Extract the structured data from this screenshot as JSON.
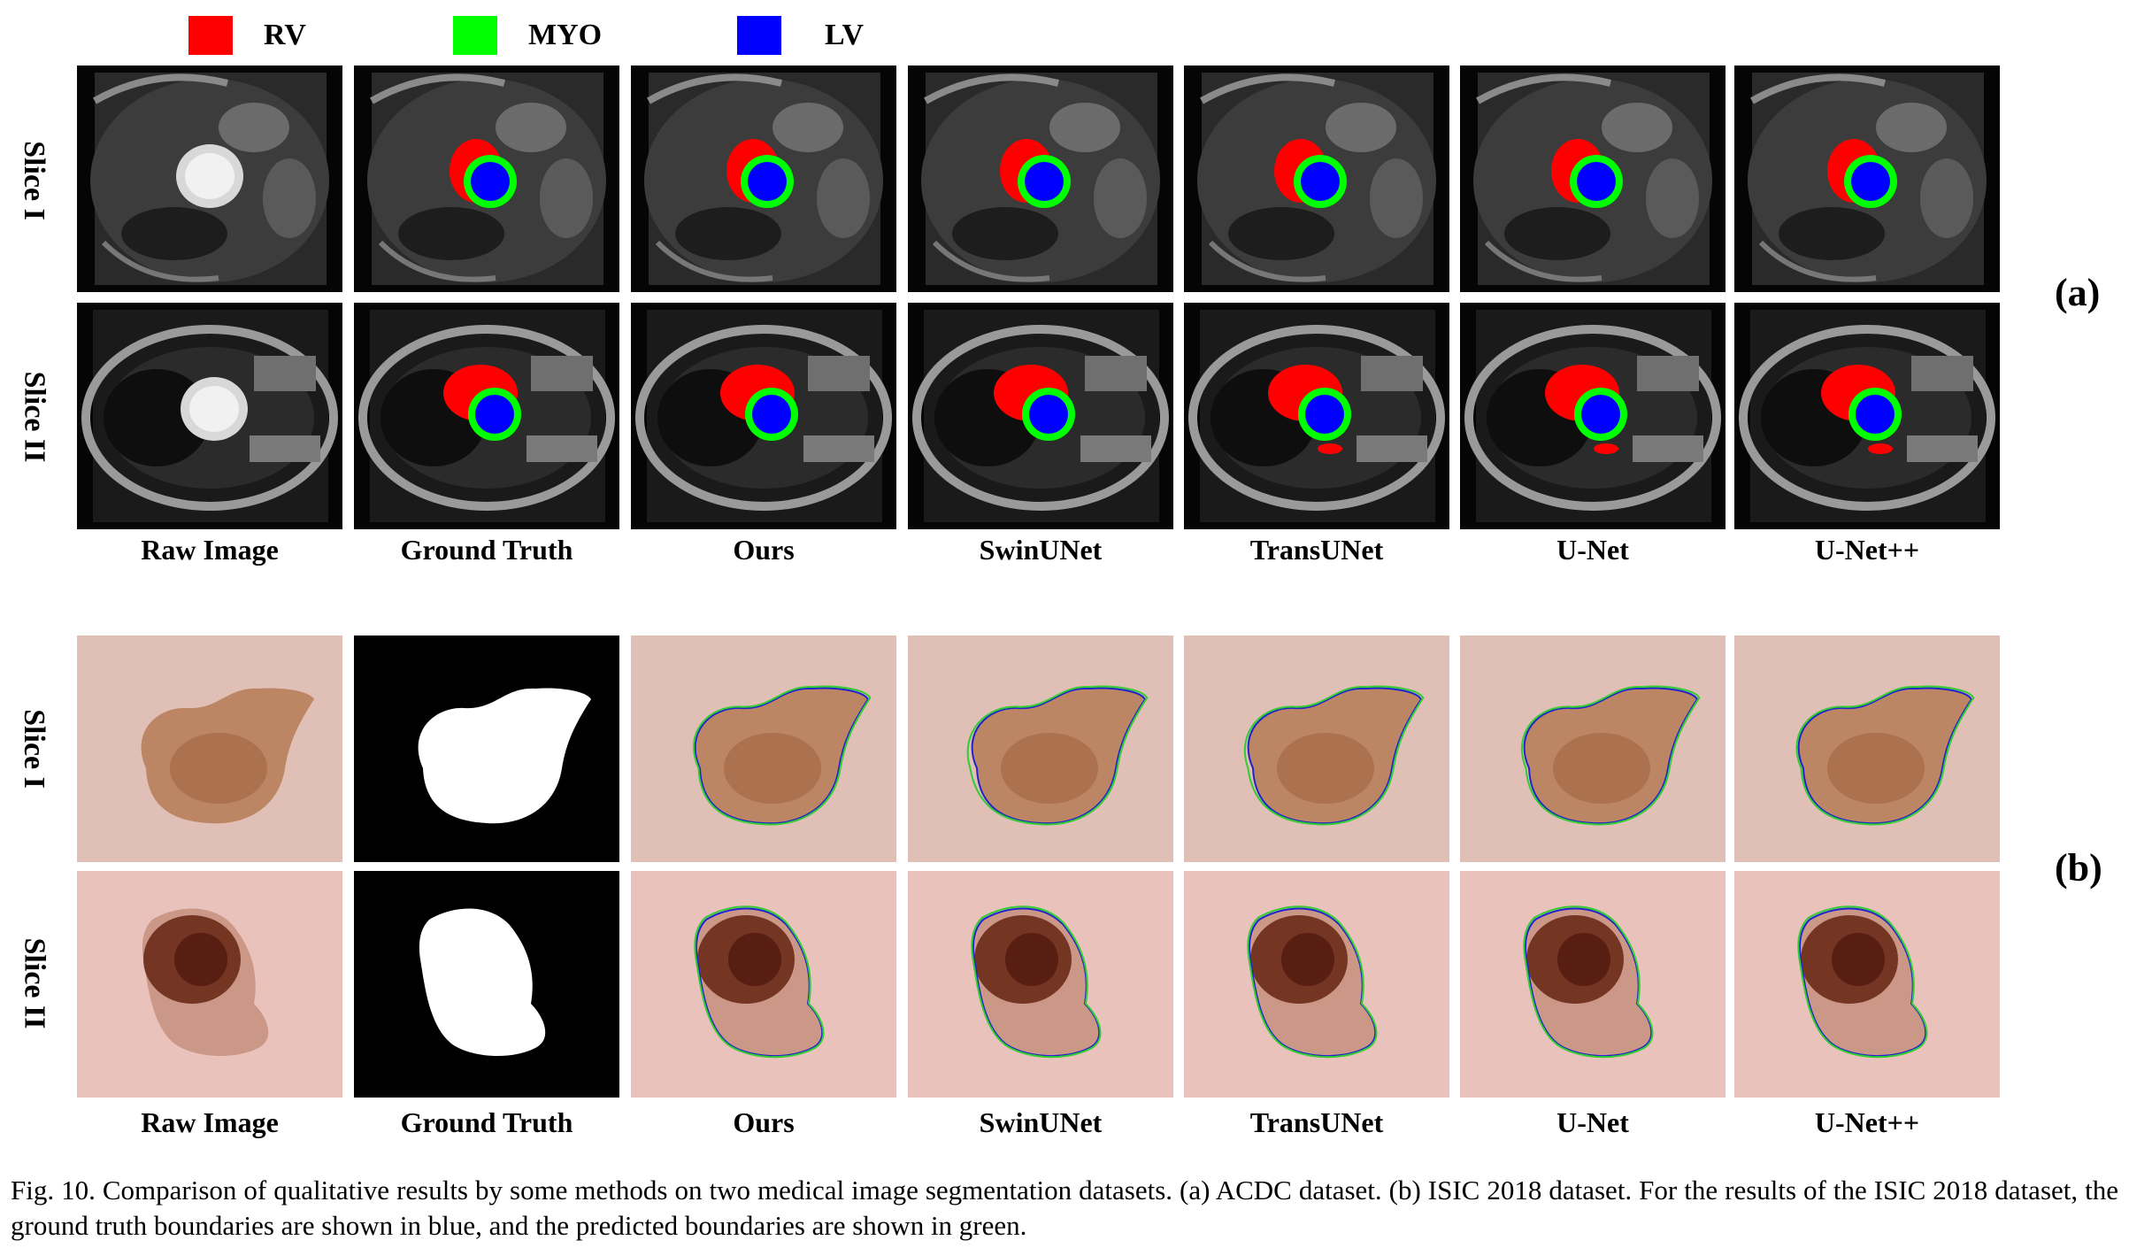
{
  "legend": [
    {
      "label": "RV",
      "color": "#ff0000"
    },
    {
      "label": "MYO",
      "color": "#00ff00"
    },
    {
      "label": "LV",
      "color": "#0000ff"
    }
  ],
  "row_labels": [
    "Slice I",
    "Slice II"
  ],
  "columns": [
    "Raw Image",
    "Ground Truth",
    "Ours",
    "SwinUNet",
    "TransUNet",
    "U-Net",
    "U-Net++"
  ],
  "part_labels": {
    "a": "(a)",
    "b": "(b)"
  },
  "caption": "Fig. 10.   Comparison of qualitative results by some methods on two medical image segmentation datasets. (a) ACDC dataset. (b) ISIC 2018 dataset. For the results of the ISIC 2018 dataset, the ground truth boundaries are shown in blue, and the predicted boundaries are shown in green.",
  "colors": {
    "gt_boundary": "#2222cc",
    "pred_boundary": "#33cc33",
    "skin": "#e3c4bc",
    "lesion": "#b07a5a"
  }
}
